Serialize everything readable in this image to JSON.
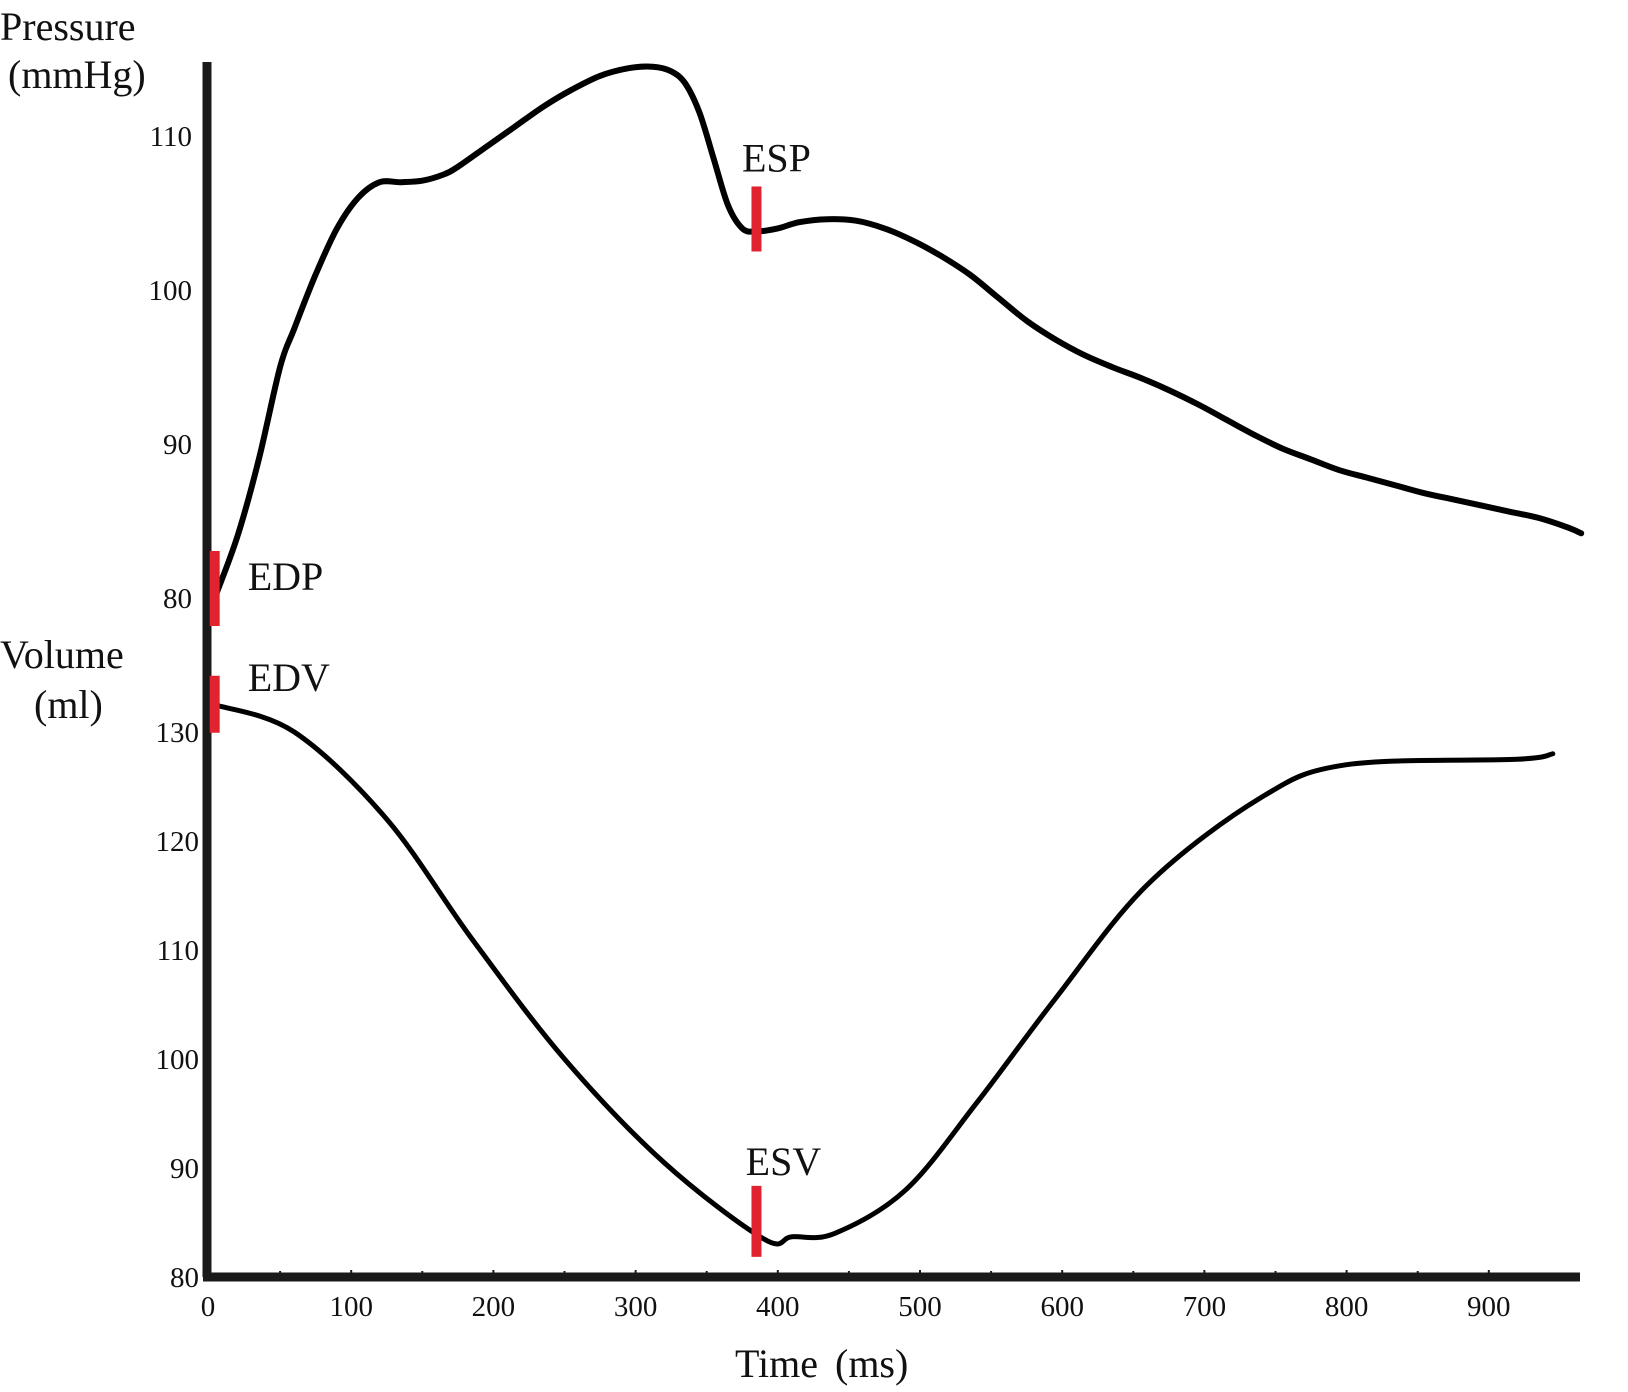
{
  "chart_data": {
    "type": "line",
    "title": "",
    "x_axis": {
      "label_main": "Time",
      "label_unit": "(ms)",
      "range": [
        0,
        960
      ],
      "ticks": [
        0,
        100,
        200,
        300,
        400,
        500,
        600,
        700,
        800,
        900
      ],
      "tick_labels": [
        "0",
        "100",
        "200",
        "300",
        "400",
        "500",
        "600",
        "700",
        "800",
        "900"
      ]
    },
    "pressure_axis": {
      "label": "Pressure",
      "unit": "(mmHg)",
      "range": [
        75,
        115
      ],
      "ticks": [
        80,
        90,
        100,
        110
      ],
      "tick_labels": [
        "80",
        "90",
        "100",
        "110"
      ]
    },
    "volume_axis": {
      "label": "Volume",
      "unit": "(ml)",
      "range": [
        80,
        135
      ],
      "ticks": [
        80,
        90,
        100,
        110,
        120,
        130
      ],
      "tick_labels": [
        "80",
        "90",
        "100",
        "110",
        "120",
        "130"
      ]
    },
    "grid": false,
    "legend": "none",
    "series": [
      {
        "axis": "pressure",
        "x": [
          4,
          20,
          35,
          50,
          60,
          75,
          90,
          105,
          120,
          135,
          150,
          165,
          175,
          195,
          215,
          235,
          255,
          275,
          295,
          312,
          325,
          335,
          345,
          355,
          365,
          375,
          385,
          400,
          415,
          435,
          455,
          475,
          495,
          515,
          535,
          555,
          575,
          595,
          615,
          635,
          655,
          675,
          695,
          715,
          735,
          755,
          775,
          795,
          815,
          835,
          855,
          875,
          895,
          915,
          935,
          955,
          965
        ],
        "values": [
          80,
          84,
          89,
          95,
          97.5,
          101,
          104,
          106,
          107,
          107,
          107.1,
          107.5,
          108,
          109.3,
          110.6,
          111.9,
          113,
          113.9,
          114.4,
          114.5,
          114.2,
          113.4,
          111.5,
          108.5,
          105.5,
          104,
          103.8,
          104,
          104.4,
          104.6,
          104.5,
          104,
          103.2,
          102.2,
          101,
          99.5,
          98,
          96.8,
          95.8,
          95,
          94.3,
          93.5,
          92.6,
          91.6,
          90.6,
          89.7,
          89,
          88.3,
          87.8,
          87.3,
          86.8,
          86.4,
          86,
          85.6,
          85.2,
          84.6,
          84.2
        ]
      },
      {
        "axis": "volume",
        "x": [
          4,
          60,
          125,
          185,
          250,
          320,
          390,
          410,
          440,
          490,
          540,
          595,
          660,
          740,
          800,
          920,
          945
        ],
        "values": [
          132.5,
          130,
          122,
          111,
          100,
          90.5,
          83.5,
          83.7,
          84,
          88,
          96,
          105.5,
          116,
          124,
          127,
          127.5,
          128
        ]
      }
    ],
    "annotations": [
      {
        "text": "EDP",
        "axis": "pressure",
        "x": 4,
        "y": 80
      },
      {
        "text": "EDV",
        "axis": "volume",
        "x": 4,
        "y": 132.5
      },
      {
        "text": "ESP",
        "axis": "pressure",
        "x": 385,
        "y": 103.8
      },
      {
        "text": "ESV",
        "axis": "volume",
        "x": 385,
        "y": 83.5
      }
    ],
    "colors": {
      "curve": "#000000",
      "marker": "#e0232f",
      "axis": "#1a1a1a"
    }
  }
}
